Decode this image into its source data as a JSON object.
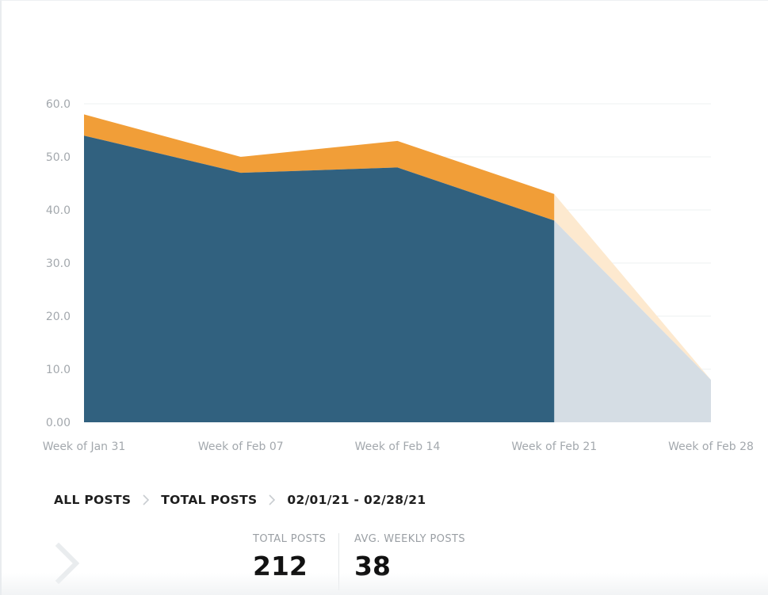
{
  "chart_data": {
    "type": "area",
    "stacked": true,
    "categories": [
      "Week of Jan 31",
      "Week of Feb 07",
      "Week of Feb 14",
      "Week of Feb 21",
      "Week of Feb 28"
    ],
    "y_ticks": [
      "0.00",
      "10.0",
      "20.0",
      "30.0",
      "40.0",
      "50.0",
      "60.0"
    ],
    "ylim": [
      0,
      60
    ],
    "grid": true,
    "series": [
      {
        "values": [
          54,
          47,
          48,
          38,
          8
        ],
        "color": "#31617f",
        "projected_color": "#d5dde4"
      },
      {
        "values": [
          4,
          3,
          5,
          5,
          0
        ],
        "color": "#f19e38",
        "projected_color": "#fde9cf"
      }
    ],
    "projected_from_index": 3
  },
  "breadcrumb": {
    "items": [
      "ALL POSTS",
      "TOTAL POSTS"
    ],
    "date_range": "02/01/21 - 02/28/21"
  },
  "stats": {
    "total_posts": {
      "label": "TOTAL POSTS",
      "value": "212"
    },
    "avg_weekly_posts": {
      "label": "AVG. WEEKLY POSTS",
      "value": "38"
    }
  },
  "icons": {
    "breadcrumb_separator": "chevron-right-icon",
    "back": "chevron-right-icon"
  }
}
